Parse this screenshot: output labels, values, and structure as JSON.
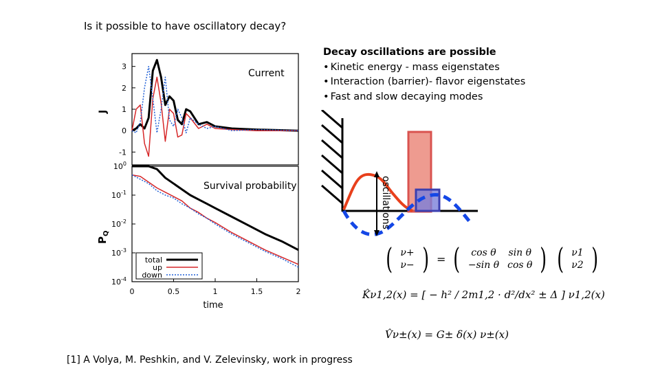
{
  "slide": {
    "title": "Is it possible to have oscillatory decay?",
    "footer": "[1] A Volya, M. Peshkin, and V. Zelevinsky, work in progress"
  },
  "bullets": {
    "heading": "Decay oscillations are possible",
    "items": [
      "Kinetic energy - mass eigenstates",
      "Interaction (barrier)- flavor eigenstates",
      "Fast and slow decaying modes"
    ]
  },
  "labels": {
    "current": "Current",
    "survival": "Survival probability",
    "oscillations": "oscillations"
  },
  "chart_data": [
    {
      "type": "line",
      "title": "",
      "xlabel": "",
      "ylabel": "J",
      "xlim": [
        0,
        2
      ],
      "ylim": [
        -1.6,
        3.6
      ],
      "yticks": [
        "3",
        "2",
        "1",
        "0",
        "-1"
      ],
      "series": [
        {
          "name": "total",
          "color": "#000000",
          "x": [
            0,
            0.05,
            0.1,
            0.15,
            0.2,
            0.25,
            0.3,
            0.35,
            0.4,
            0.45,
            0.5,
            0.55,
            0.6,
            0.65,
            0.7,
            0.8,
            0.9,
            1.0,
            1.2,
            1.5,
            2.0
          ],
          "y": [
            0,
            0.1,
            0.3,
            0.1,
            0.6,
            2.8,
            3.3,
            2.5,
            1.2,
            1.6,
            1.4,
            0.5,
            0.3,
            1.0,
            0.9,
            0.3,
            0.4,
            0.2,
            0.1,
            0.05,
            0.0
          ]
        },
        {
          "name": "up",
          "color": "#d62728",
          "x": [
            0,
            0.05,
            0.1,
            0.15,
            0.2,
            0.25,
            0.3,
            0.35,
            0.4,
            0.45,
            0.5,
            0.55,
            0.6,
            0.65,
            0.7,
            0.8,
            0.9,
            1.0,
            1.2,
            1.5,
            2.0
          ],
          "y": [
            0,
            1.0,
            1.2,
            -0.6,
            -1.2,
            1.5,
            2.5,
            1.3,
            -0.5,
            1.0,
            0.8,
            -0.3,
            -0.2,
            0.8,
            0.6,
            0.1,
            0.3,
            0.1,
            0.05,
            0.0,
            0.0
          ]
        },
        {
          "name": "down",
          "color": "#1f5fd6",
          "x": [
            0,
            0.05,
            0.1,
            0.15,
            0.2,
            0.25,
            0.3,
            0.35,
            0.4,
            0.45,
            0.5,
            0.55,
            0.6,
            0.65,
            0.7,
            0.8,
            0.9,
            1.0,
            1.2,
            1.5,
            2.0
          ],
          "y": [
            0,
            -0.1,
            0.4,
            2.0,
            3.0,
            1.5,
            -0.1,
            1.0,
            2.5,
            0.5,
            0.2,
            1.0,
            0.6,
            -0.1,
            0.6,
            0.3,
            0.1,
            0.2,
            0.0,
            0.05,
            0.0
          ]
        }
      ]
    },
    {
      "type": "line",
      "title": "",
      "xlabel": "time",
      "ylabel": "PQ",
      "xlim": [
        0,
        2
      ],
      "ylim": [
        -4,
        0
      ],
      "yscale": "log",
      "xticks": [
        "0",
        "0.5",
        "1",
        "1.5",
        "2"
      ],
      "yticks": [
        "10^0",
        "10^-1",
        "10^-2",
        "10^-3",
        "10^-4"
      ],
      "legend_position": "bottom-left",
      "series": [
        {
          "name": "total",
          "color": "#000000",
          "x": [
            0,
            0.1,
            0.2,
            0.3,
            0.4,
            0.5,
            0.6,
            0.7,
            0.8,
            0.9,
            1.0,
            1.2,
            1.4,
            1.6,
            1.8,
            2.0
          ],
          "y": [
            0,
            0,
            0,
            -0.1,
            -0.4,
            -0.6,
            -0.8,
            -1.0,
            -1.15,
            -1.3,
            -1.45,
            -1.75,
            -2.05,
            -2.35,
            -2.6,
            -2.9
          ]
        },
        {
          "name": "up",
          "color": "#d62728",
          "x": [
            0,
            0.1,
            0.2,
            0.3,
            0.4,
            0.5,
            0.6,
            0.7,
            0.8,
            0.9,
            1.0,
            1.2,
            1.4,
            1.6,
            1.8,
            2.0
          ],
          "y": [
            -0.3,
            -0.35,
            -0.55,
            -0.75,
            -0.9,
            -1.05,
            -1.2,
            -1.45,
            -1.6,
            -1.8,
            -1.95,
            -2.3,
            -2.6,
            -2.9,
            -3.15,
            -3.4
          ]
        },
        {
          "name": "down",
          "color": "#1f5fd6",
          "x": [
            0,
            0.1,
            0.2,
            0.3,
            0.4,
            0.5,
            0.6,
            0.7,
            0.8,
            0.9,
            1.0,
            1.2,
            1.4,
            1.6,
            1.8,
            2.0
          ],
          "y": [
            -0.3,
            -0.45,
            -0.6,
            -0.85,
            -1.0,
            -1.1,
            -1.3,
            -1.45,
            -1.65,
            -1.8,
            -2.0,
            -2.35,
            -2.65,
            -2.95,
            -3.2,
            -3.5
          ]
        }
      ]
    }
  ],
  "equations": {
    "mixing_nu_plus": "ν+",
    "mixing_nu_minus": "ν−",
    "mixing_m11": "cos θ",
    "mixing_m12": "sin θ",
    "mixing_m21": "−sin θ",
    "mixing_m22": "cos θ",
    "mixing_nu1": "ν1",
    "mixing_nu2": "ν2",
    "kinetic": "K̂ν1,2(x) = [ − h² / 2m1,2 · d²/dx² ± Δ ] ν1,2(x)",
    "potential": "V̂ν±(x) = G± δ(x) ν±(x)"
  },
  "colors": {
    "barrier_red": "#e8796b",
    "barrier_blue": "#7b7fd9",
    "wave_red": "#e8401c",
    "wave_blue": "#1447e6"
  }
}
